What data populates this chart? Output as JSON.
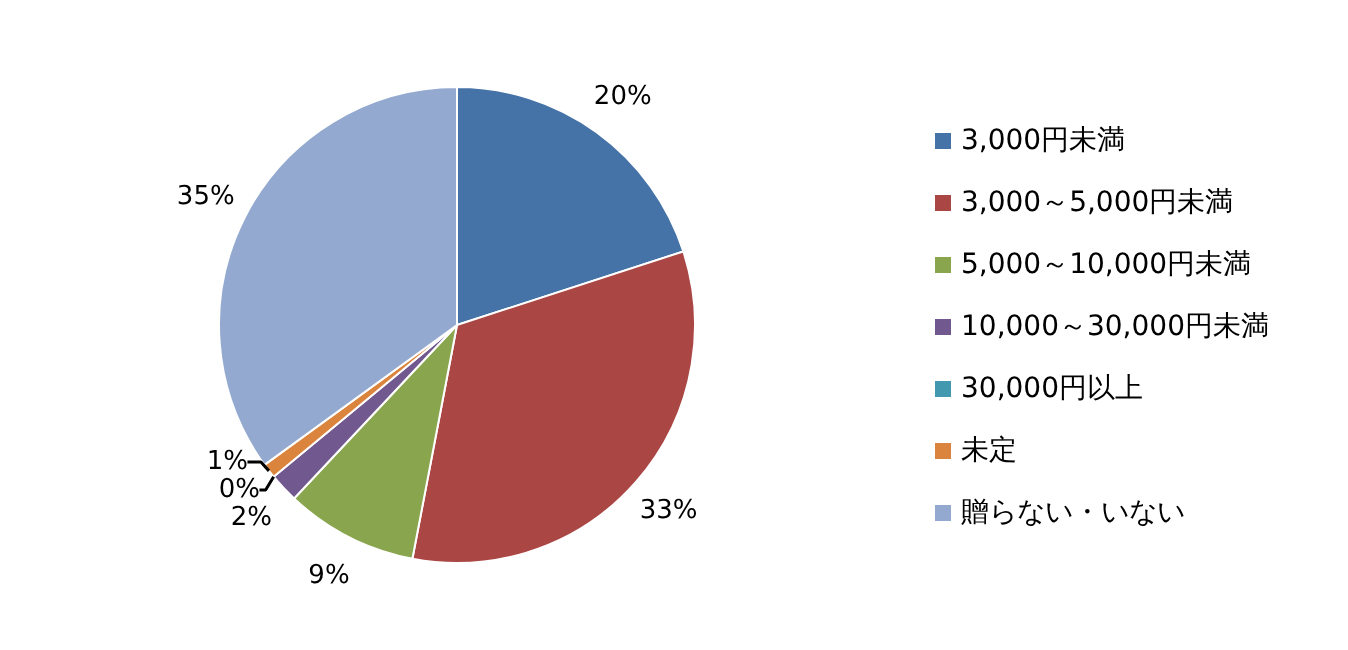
{
  "chart_data": {
    "type": "pie",
    "categories": [
      "3,000円未満",
      "3,000～5,000円未満",
      "5,000～10,000円未満",
      "10,000～30,000円未満",
      "30,000円以上",
      "未定",
      "贈らない・いない"
    ],
    "values": [
      20,
      33,
      9,
      2,
      0,
      1,
      35
    ],
    "colors": [
      "#4572a7",
      "#aa4643",
      "#89a54e",
      "#71588f",
      "#4198af",
      "#db843d",
      "#93a9cf"
    ],
    "value_labels": [
      "20%",
      "33%",
      "9%",
      "2%",
      "0%",
      "1%",
      "35%"
    ],
    "legend": "right"
  }
}
